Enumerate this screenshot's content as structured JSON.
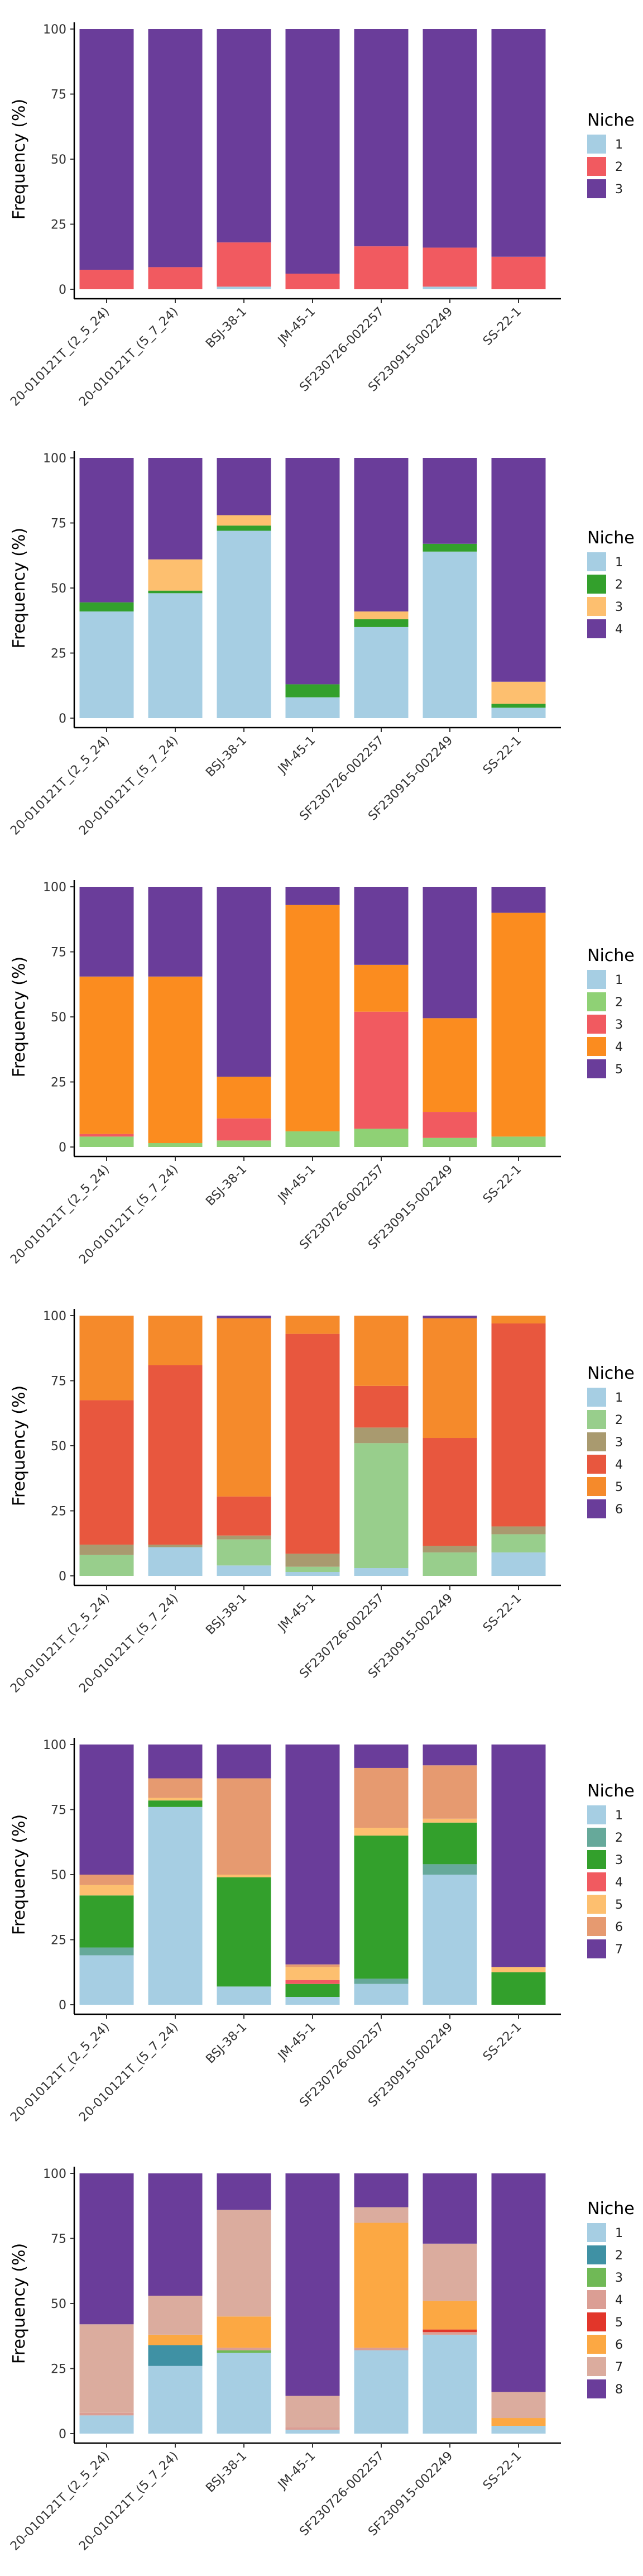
{
  "chart_data": [
    {
      "type": "bar",
      "stacked": true,
      "categories": [
        "20-010121T_(2_5_24)",
        "20-010121T_(5_7_24)",
        "BSJ-38-1",
        "JM-45-1",
        "SF230726-002257",
        "SF230915-002249",
        "SS-22-1"
      ],
      "ylabel": "Frequency (%)",
      "ylim": [
        0,
        100
      ],
      "yticks": [
        "0",
        "25",
        "50",
        "75",
        "100"
      ],
      "legend": {
        "title": "Niche",
        "position": "right"
      },
      "series": [
        {
          "name": "1",
          "color": "#A6CEE3",
          "values": [
            0,
            0,
            1,
            0,
            0,
            1,
            0
          ]
        },
        {
          "name": "2",
          "color": "#F15A60",
          "values": [
            7.5,
            8.5,
            17,
            6,
            16.5,
            15,
            12.5
          ]
        },
        {
          "name": "3",
          "color": "#6A3D9A",
          "values": [
            92.5,
            91.5,
            82,
            94,
            83.5,
            84,
            87.5
          ]
        }
      ]
    },
    {
      "type": "bar",
      "stacked": true,
      "categories": [
        "20-010121T_(2_5_24)",
        "20-010121T_(5_7_24)",
        "BSJ-38-1",
        "JM-45-1",
        "SF230726-002257",
        "SF230915-002249",
        "SS-22-1"
      ],
      "ylabel": "Frequency (%)",
      "ylim": [
        0,
        100
      ],
      "yticks": [
        "0",
        "25",
        "50",
        "75",
        "100"
      ],
      "legend": {
        "title": "Niche",
        "position": "right"
      },
      "series": [
        {
          "name": "1",
          "color": "#A6CEE3",
          "values": [
            41,
            48,
            72,
            8,
            35,
            64,
            4
          ]
        },
        {
          "name": "2",
          "color": "#33A02C",
          "values": [
            3.5,
            1,
            2,
            5,
            3,
            3,
            1.5
          ]
        },
        {
          "name": "3",
          "color": "#FDBF6F",
          "values": [
            0,
            12,
            4,
            0,
            3,
            0,
            8.5
          ]
        },
        {
          "name": "4",
          "color": "#6A3D9A",
          "values": [
            55.5,
            39,
            22,
            87,
            59,
            33,
            86
          ]
        }
      ]
    },
    {
      "type": "bar",
      "stacked": true,
      "categories": [
        "20-010121T_(2_5_24)",
        "20-010121T_(5_7_24)",
        "BSJ-38-1",
        "JM-45-1",
        "SF230726-002257",
        "SF230915-002249",
        "SS-22-1"
      ],
      "ylabel": "Frequency (%)",
      "ylim": [
        0,
        100
      ],
      "yticks": [
        "0",
        "25",
        "50",
        "75",
        "100"
      ],
      "legend": {
        "title": "Niche",
        "position": "right"
      },
      "series": [
        {
          "name": "1",
          "color": "#A6CEE3",
          "values": [
            0,
            0,
            0,
            0,
            0,
            0,
            0
          ]
        },
        {
          "name": "2",
          "color": "#8FD175",
          "values": [
            4,
            1.5,
            2.5,
            6,
            7,
            3.5,
            4
          ]
        },
        {
          "name": "3",
          "color": "#F15A60",
          "values": [
            1,
            0,
            8.5,
            0,
            45,
            10,
            0
          ]
        },
        {
          "name": "4",
          "color": "#FB8C1F",
          "values": [
            60.5,
            64,
            16,
            87,
            18,
            36,
            86
          ]
        },
        {
          "name": "5",
          "color": "#6A3D9A",
          "values": [
            34.5,
            34.5,
            73,
            7,
            30,
            50.5,
            10
          ]
        }
      ]
    },
    {
      "type": "bar",
      "stacked": true,
      "categories": [
        "20-010121T_(2_5_24)",
        "20-010121T_(5_7_24)",
        "BSJ-38-1",
        "JM-45-1",
        "SF230726-002257",
        "SF230915-002249",
        "SS-22-1"
      ],
      "ylabel": "Frequency (%)",
      "ylim": [
        0,
        100
      ],
      "yticks": [
        "0",
        "25",
        "50",
        "75",
        "100"
      ],
      "legend": {
        "title": "Niche",
        "position": "right"
      },
      "series": [
        {
          "name": "1",
          "color": "#A6CEE3",
          "values": [
            0,
            11,
            4,
            1.5,
            3,
            0,
            9
          ]
        },
        {
          "name": "2",
          "color": "#98CE8C",
          "values": [
            8,
            0,
            10,
            2,
            48,
            9,
            7
          ]
        },
        {
          "name": "3",
          "color": "#A99A6F",
          "values": [
            4,
            1,
            1.5,
            5,
            6,
            2.5,
            3
          ]
        },
        {
          "name": "4",
          "color": "#E8573E",
          "values": [
            55.5,
            69,
            15,
            84.5,
            16,
            41.5,
            78
          ]
        },
        {
          "name": "5",
          "color": "#F58A2B",
          "values": [
            32.5,
            19,
            68.5,
            7,
            27,
            46,
            3
          ]
        },
        {
          "name": "6",
          "color": "#6A3D9A",
          "values": [
            0,
            0,
            1,
            0,
            0,
            1,
            0
          ]
        }
      ]
    },
    {
      "type": "bar",
      "stacked": true,
      "categories": [
        "20-010121T_(2_5_24)",
        "20-010121T_(5_7_24)",
        "BSJ-38-1",
        "JM-45-1",
        "SF230726-002257",
        "SF230915-002249",
        "SS-22-1"
      ],
      "ylabel": "Frequency (%)",
      "ylim": [
        0,
        100
      ],
      "yticks": [
        "0",
        "25",
        "50",
        "75",
        "100"
      ],
      "legend": {
        "title": "Niche",
        "position": "right"
      },
      "series": [
        {
          "name": "1",
          "color": "#A6CEE3",
          "values": [
            19,
            76,
            7,
            3,
            8,
            50,
            0
          ]
        },
        {
          "name": "2",
          "color": "#66A99A",
          "values": [
            3,
            0,
            0,
            0,
            2,
            4,
            0
          ]
        },
        {
          "name": "3",
          "color": "#33A02C",
          "values": [
            20,
            2.5,
            42,
            5,
            55,
            16,
            12.5
          ]
        },
        {
          "name": "4",
          "color": "#F15A60",
          "values": [
            0,
            0,
            0,
            1.5,
            0,
            0,
            0
          ]
        },
        {
          "name": "5",
          "color": "#FDBF6F",
          "values": [
            4,
            1,
            1,
            5,
            3,
            1.5,
            2
          ]
        },
        {
          "name": "6",
          "color": "#E69A70",
          "values": [
            4,
            7.5,
            37,
            1,
            23,
            20.5,
            0
          ]
        },
        {
          "name": "7",
          "color": "#6A3D9A",
          "values": [
            50,
            13,
            13,
            84.5,
            9,
            8,
            85.5
          ]
        }
      ]
    },
    {
      "type": "bar",
      "stacked": true,
      "categories": [
        "20-010121T_(2_5_24)",
        "20-010121T_(5_7_24)",
        "BSJ-38-1",
        "JM-45-1",
        "SF230726-002257",
        "SF230915-002249",
        "SS-22-1"
      ],
      "ylabel": "Frequency (%)",
      "ylim": [
        0,
        100
      ],
      "yticks": [
        "0",
        "25",
        "50",
        "75",
        "100"
      ],
      "legend": {
        "title": "Niche",
        "position": "right"
      },
      "series": [
        {
          "name": "1",
          "color": "#A6CEE3",
          "values": [
            7,
            26,
            31,
            1.5,
            32,
            38,
            3
          ]
        },
        {
          "name": "2",
          "color": "#3F91A4",
          "values": [
            0,
            8,
            0,
            0,
            0,
            0,
            0
          ]
        },
        {
          "name": "3",
          "color": "#70B956",
          "values": [
            0,
            0,
            1,
            0,
            0,
            0,
            0
          ]
        },
        {
          "name": "4",
          "color": "#DB9E94",
          "values": [
            1,
            0,
            1,
            1,
            1,
            1,
            0
          ]
        },
        {
          "name": "5",
          "color": "#E2362A",
          "values": [
            0,
            0,
            0,
            0,
            0,
            1,
            0
          ]
        },
        {
          "name": "6",
          "color": "#FCA843",
          "values": [
            0,
            4,
            12,
            0,
            48,
            11,
            3
          ]
        },
        {
          "name": "7",
          "color": "#DBAC9E",
          "values": [
            34,
            15,
            41,
            12,
            6,
            22,
            10
          ]
        },
        {
          "name": "8",
          "color": "#6A3D9A",
          "values": [
            58,
            47,
            14,
            85.5,
            13,
            27,
            84
          ]
        }
      ]
    }
  ]
}
